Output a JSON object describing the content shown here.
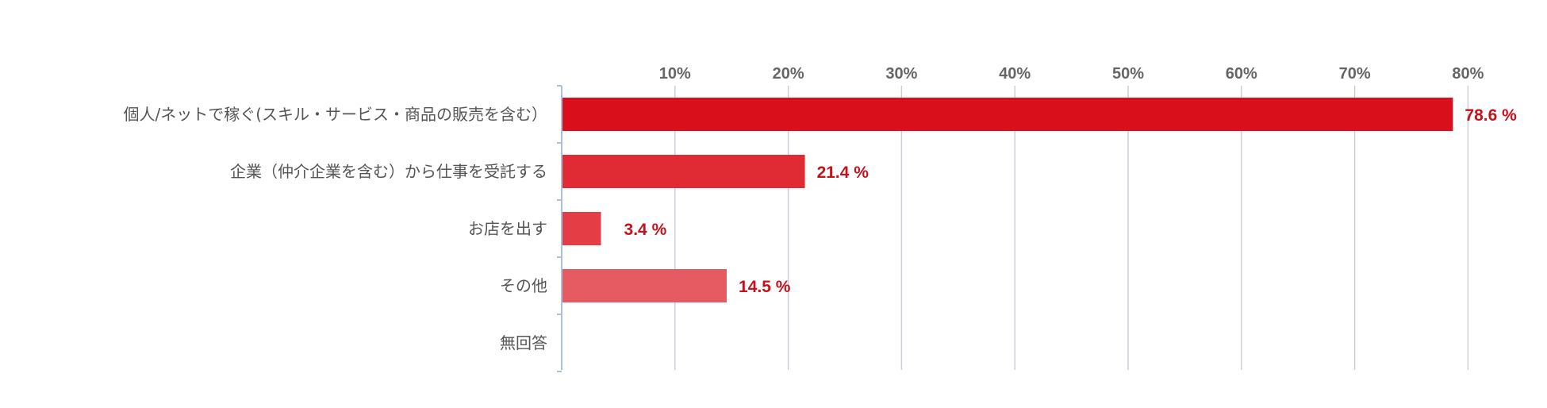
{
  "chart_data": {
    "type": "bar",
    "orientation": "horizontal",
    "categories": [
      "個人/ネットで稼ぐ(スキル・サービス・商品の販売を含む）",
      "企業（仲介企業を含む）から仕事を受託する",
      "お店を出す",
      "その他",
      "無回答"
    ],
    "values": [
      78.6,
      21.4,
      3.4,
      14.5,
      null
    ],
    "value_labels": [
      "78.6 %",
      "21.4 %",
      "3.4 %",
      "14.5 %",
      ""
    ],
    "xlim": [
      0,
      85
    ],
    "x_ticks": [
      10,
      20,
      30,
      40,
      50,
      60,
      70,
      80
    ],
    "x_tick_labels": [
      "10%",
      "20%",
      "30%",
      "40%",
      "50%",
      "60%",
      "70%",
      "80%"
    ],
    "x_axis_position": "top",
    "grid": true,
    "legend": "none",
    "bar_colors": [
      "#d90f1b",
      "#e02b34",
      "#e43d45",
      "#e65a62",
      "#e65a62"
    ],
    "label_color": "#c8101c",
    "grid_color": "#c8ccd6",
    "axis_color": "#a9bfdc"
  }
}
